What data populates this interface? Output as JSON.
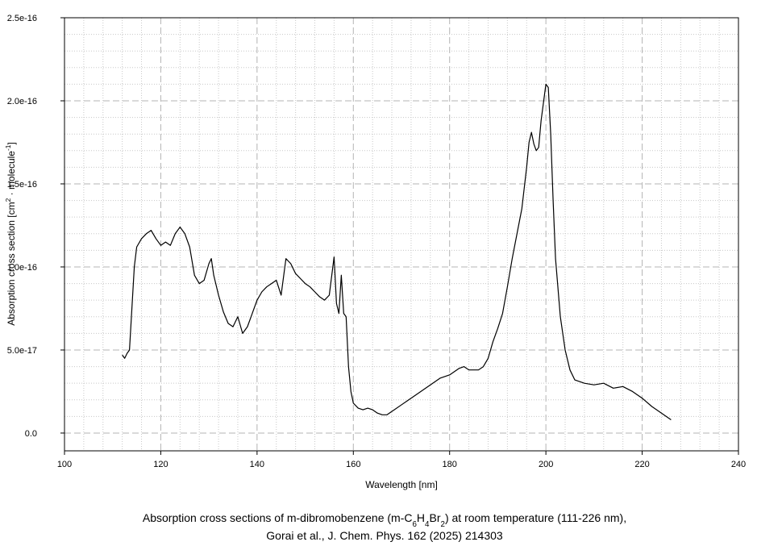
{
  "chart_data": {
    "type": "line",
    "title_parts": [
      {
        "text": "Absorption cross sections of m-dibromobenzene (m-C",
        "shift": "none"
      },
      {
        "text": "6",
        "shift": "sub"
      },
      {
        "text": "H",
        "shift": "none"
      },
      {
        "text": "4",
        "shift": "sub"
      },
      {
        "text": "Br",
        "shift": "none"
      },
      {
        "text": "2",
        "shift": "sub"
      },
      {
        "text": ") at room temperature (111-226 nm),",
        "shift": "none"
      }
    ],
    "subtitle": "Gorai et al., J. Chem. Phys. 162 (2025) 214303",
    "x_label": "Wavelength [nm]",
    "y_label_parts": [
      {
        "text": "Absorption cross section [cm",
        "shift": "none"
      },
      {
        "text": "2",
        "shift": "super"
      },
      {
        "text": " · molecule",
        "shift": "none"
      },
      {
        "text": "-1",
        "shift": "super"
      },
      {
        "text": "]",
        "shift": "none"
      }
    ],
    "color": "#000000",
    "grid": true,
    "xlim": [
      100,
      240
    ],
    "ylim": [
      -1.07e-17,
      2.5e-16
    ],
    "xticks": [
      100,
      120,
      140,
      160,
      180,
      200,
      220,
      240
    ],
    "yticks": [
      {
        "value": 0,
        "label": "0.0"
      },
      {
        "value": 5e-17,
        "label": "5.0e-17"
      },
      {
        "value": 1e-16,
        "label": "1.0e-16"
      },
      {
        "value": 1.5e-16,
        "label": "1.5e-16"
      },
      {
        "value": 2e-16,
        "label": "2.0e-16"
      },
      {
        "value": 2.5e-16,
        "label": "2.5e-16"
      }
    ],
    "minor_xticks": [
      104,
      108,
      112,
      116,
      124,
      128,
      132,
      136,
      144,
      148,
      152,
      156,
      164,
      168,
      172,
      176,
      184,
      188,
      192,
      196,
      204,
      208,
      212,
      216,
      224,
      228,
      232,
      236
    ],
    "minor_yticks": [
      1e-17,
      2e-17,
      3e-17,
      4e-17,
      6e-17,
      7e-17,
      8e-17,
      9e-17,
      1.1e-16,
      1.2e-16,
      1.3e-16,
      1.4e-16,
      1.6e-16,
      1.7e-16,
      1.8e-16,
      1.9e-16,
      2.1e-16,
      2.2e-16,
      2.3e-16,
      2.4e-16
    ],
    "x": [
      112,
      112.5,
      113,
      113.5,
      114,
      114.5,
      115,
      116,
      117,
      118,
      119,
      120,
      121,
      122,
      123,
      124,
      125,
      126,
      127,
      128,
      129,
      130,
      130.5,
      131,
      132,
      133,
      134,
      135,
      136,
      137,
      138,
      139,
      140,
      141,
      142,
      143,
      144,
      145,
      146,
      147,
      148,
      149,
      150,
      151,
      152,
      153,
      154,
      155,
      156,
      156.5,
      157,
      157.5,
      158,
      158.5,
      159,
      159.5,
      160,
      161,
      162,
      163,
      164,
      165,
      166,
      167,
      168,
      170,
      172,
      174,
      176,
      178,
      180,
      182,
      183,
      184,
      186,
      187,
      188,
      189,
      190,
      191,
      192,
      193,
      194,
      195,
      196,
      196.5,
      197,
      197.5,
      198,
      198.5,
      199,
      200,
      200.5,
      201,
      201.5,
      202,
      203,
      204,
      205,
      206,
      208,
      210,
      212,
      214,
      216,
      218,
      220,
      222,
      224,
      226
    ],
    "values": [
      4.7e-17,
      4.5e-17,
      4.8e-17,
      5e-17,
      7.5e-17,
      1e-16,
      1.12e-16,
      1.17e-16,
      1.2e-16,
      1.22e-16,
      1.17e-16,
      1.13e-16,
      1.15e-16,
      1.13e-16,
      1.2e-16,
      1.24e-16,
      1.2e-16,
      1.12e-16,
      9.5e-17,
      9e-17,
      9.2e-17,
      1.02e-16,
      1.05e-16,
      9.5e-17,
      8.3e-17,
      7.3e-17,
      6.6e-17,
      6.4e-17,
      7e-17,
      6e-17,
      6.4e-17,
      7.2e-17,
      8e-17,
      8.5e-17,
      8.8e-17,
      9e-17,
      9.2e-17,
      8.3e-17,
      1.05e-16,
      1.02e-16,
      9.6e-17,
      9.3e-17,
      9e-17,
      8.8e-17,
      8.5e-17,
      8.2e-17,
      8e-17,
      8.3e-17,
      1.06e-16,
      7.8e-17,
      7.2e-17,
      9.5e-17,
      7.2e-17,
      7e-17,
      4e-17,
      2.5e-17,
      1.8e-17,
      1.5e-17,
      1.4e-17,
      1.5e-17,
      1.4e-17,
      1.2e-17,
      1.1e-17,
      1.1e-17,
      1.3e-17,
      1.7e-17,
      2.1e-17,
      2.5e-17,
      2.9e-17,
      3.3e-17,
      3.5e-17,
      3.9e-17,
      4e-17,
      3.8e-17,
      3.8e-17,
      4e-17,
      4.5e-17,
      5.5e-17,
      6.3e-17,
      7.2e-17,
      8.8e-17,
      1.05e-16,
      1.2e-16,
      1.35e-16,
      1.6e-16,
      1.75e-16,
      1.81e-16,
      1.74e-16,
      1.7e-16,
      1.72e-16,
      1.88e-16,
      2.1e-16,
      2.08e-16,
      1.8e-16,
      1.4e-16,
      1.05e-16,
      7e-17,
      5e-17,
      3.8e-17,
      3.2e-17,
      3e-17,
      2.9e-17,
      3e-17,
      2.7e-17,
      2.8e-17,
      2.5e-17,
      2.1e-17,
      1.6e-17,
      1.2e-17,
      8e-18
    ]
  }
}
